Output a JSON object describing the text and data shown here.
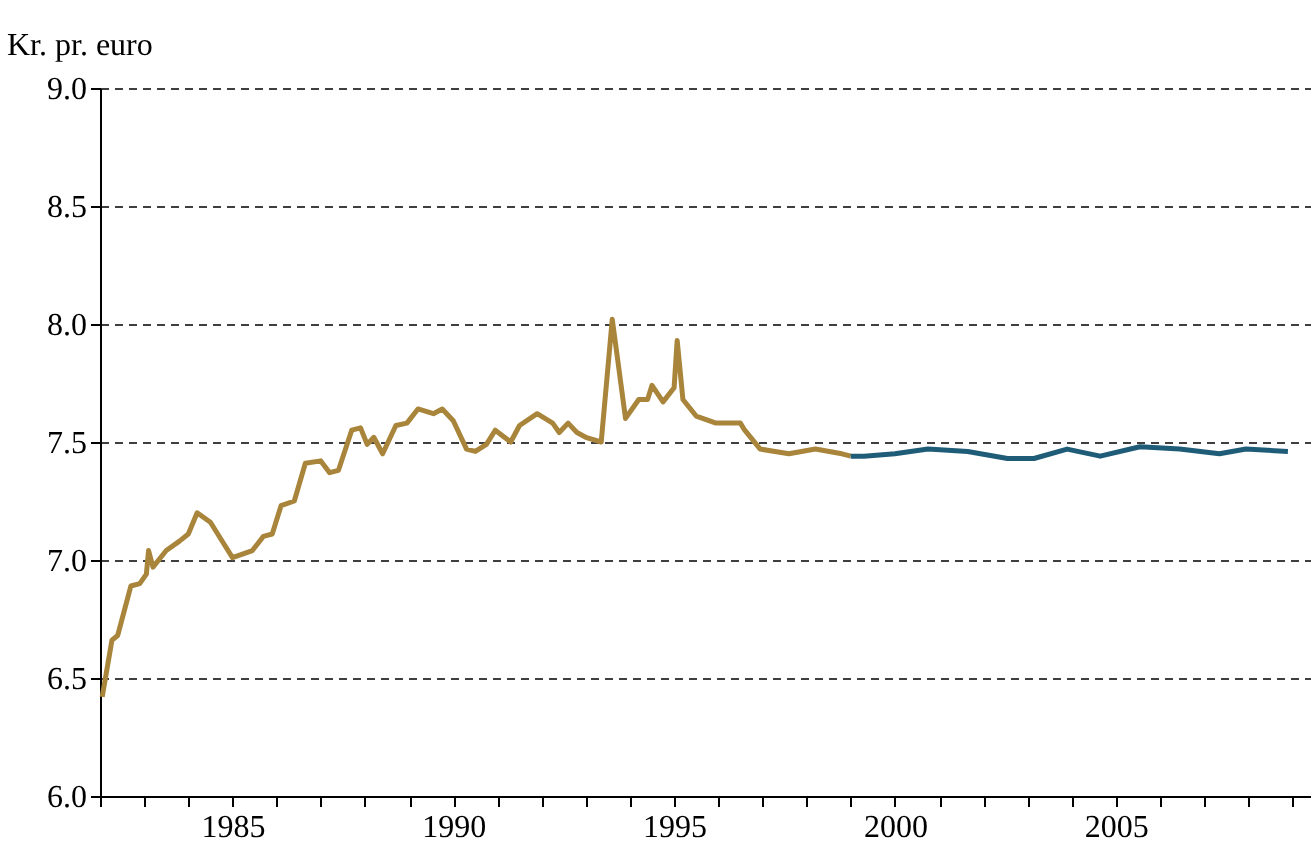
{
  "chart_data": {
    "type": "line",
    "ylabel": "Kr. pr. euro",
    "series": [
      {
        "color": "#a8853a",
        "x": [
          1982.05,
          1982.27,
          1982.4,
          1982.7,
          1982.9,
          1983.05,
          1983.1,
          1983.2,
          1983.5,
          1983.8,
          1984.0,
          1984.2,
          1984.5,
          1984.8,
          1985.0,
          1985.45,
          1985.7,
          1985.9,
          1986.1,
          1986.4,
          1986.65,
          1987.0,
          1987.2,
          1987.4,
          1987.7,
          1987.9,
          1988.05,
          1988.2,
          1988.4,
          1988.7,
          1988.95,
          1989.2,
          1989.55,
          1989.75,
          1990.0,
          1990.3,
          1990.5,
          1990.75,
          1990.95,
          1991.3,
          1991.5,
          1991.9,
          1992.25,
          1992.4,
          1992.6,
          1992.8,
          1993.0,
          1993.35,
          1993.6,
          1993.9,
          1994.2,
          1994.4,
          1994.5,
          1994.75,
          1995.0,
          1995.07,
          1995.2,
          1995.5,
          1995.95,
          1996.5,
          1996.6,
          1996.95,
          1997.6,
          1998.2,
          1998.8,
          1999.0
        ],
        "values": [
          6.42,
          6.66,
          6.68,
          6.89,
          6.9,
          6.94,
          7.04,
          6.97,
          7.04,
          7.08,
          7.11,
          7.2,
          7.16,
          7.07,
          7.01,
          7.04,
          7.1,
          7.11,
          7.23,
          7.25,
          7.41,
          7.42,
          7.37,
          7.38,
          7.55,
          7.56,
          7.49,
          7.52,
          7.45,
          7.57,
          7.58,
          7.64,
          7.62,
          7.64,
          7.59,
          7.47,
          7.46,
          7.49,
          7.55,
          7.5,
          7.57,
          7.62,
          7.58,
          7.54,
          7.58,
          7.54,
          7.52,
          7.5,
          8.02,
          7.6,
          7.68,
          7.68,
          7.74,
          7.67,
          7.73,
          7.93,
          7.68,
          7.61,
          7.58,
          7.58,
          7.55,
          7.47,
          7.45,
          7.47,
          7.45,
          7.44
        ]
      },
      {
        "color": "#1f5c78",
        "x": [
          1999.0,
          1999.3,
          2000.0,
          2000.75,
          2001.65,
          2002.55,
          2003.15,
          2003.9,
          2004.65,
          2005.55,
          2006.45,
          2007.35,
          2007.95,
          2008.9
        ],
        "values": [
          7.44,
          7.44,
          7.45,
          7.47,
          7.46,
          7.43,
          7.43,
          7.47,
          7.44,
          7.48,
          7.47,
          7.45,
          7.47,
          7.46
        ]
      }
    ],
    "xlim": [
      1982,
      2009.4
    ],
    "xticks": [
      {
        "value": 1982,
        "label": null
      },
      {
        "value": 1983,
        "label": null
      },
      {
        "value": 1984,
        "label": null
      },
      1985,
      {
        "value": 1986,
        "label": null
      },
      {
        "value": 1987,
        "label": null
      },
      {
        "value": 1988,
        "label": null
      },
      {
        "value": 1989,
        "label": null
      },
      1990,
      {
        "value": 1991,
        "label": null
      },
      {
        "value": 1992,
        "label": null
      },
      {
        "value": 1993,
        "label": null
      },
      {
        "value": 1994,
        "label": null
      },
      1995,
      {
        "value": 1996,
        "label": null
      },
      {
        "value": 1997,
        "label": null
      },
      {
        "value": 1998,
        "label": null
      },
      {
        "value": 1999,
        "label": null
      },
      2000,
      {
        "value": 2001,
        "label": null
      },
      {
        "value": 2002,
        "label": null
      },
      {
        "value": 2003,
        "label": null
      },
      {
        "value": 2004,
        "label": null
      },
      2005,
      {
        "value": 2006,
        "label": null
      },
      {
        "value": 2007,
        "label": null
      },
      {
        "value": 2008,
        "label": null
      },
      {
        "value": 2009,
        "label": null
      }
    ],
    "ylim": [
      6.0,
      9.0
    ],
    "yticks": [
      {
        "value": 6.0,
        "label": "6.0"
      },
      {
        "value": 6.5,
        "label": "6.5"
      },
      {
        "value": 7.0,
        "label": "7.0"
      },
      {
        "value": 7.5,
        "label": "7.5"
      },
      {
        "value": 8.0,
        "label": "8.0"
      },
      {
        "value": 8.5,
        "label": "8.5"
      },
      {
        "value": 9.0,
        "label": "9.0"
      }
    ],
    "grid": "y",
    "legend": false,
    "marker": "none",
    "line_style": "solid"
  }
}
